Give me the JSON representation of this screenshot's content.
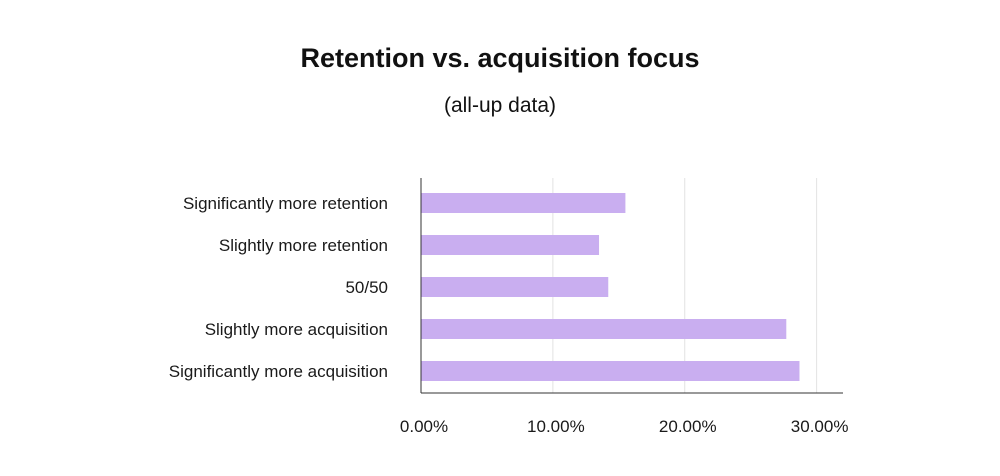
{
  "chart_data": {
    "type": "bar",
    "orientation": "horizontal",
    "title": "Retention vs. acquisition focus",
    "subtitle": "(all-up data)",
    "categories": [
      "Significantly more retention",
      "Slightly more retention",
      "50/50",
      "Slightly more acquisition",
      "Significantly more acquisition"
    ],
    "values": [
      15.5,
      13.5,
      14.2,
      27.7,
      28.7
    ],
    "xlim": [
      0,
      32
    ],
    "xticks": [
      0,
      10,
      20,
      30
    ],
    "xtick_labels": [
      "0.00%",
      "10.00%",
      "20.00%",
      "30.00%"
    ],
    "xlabel": "",
    "ylabel": "",
    "grid": "vertical",
    "legend": "none",
    "bar_color": "#c9aef0"
  }
}
